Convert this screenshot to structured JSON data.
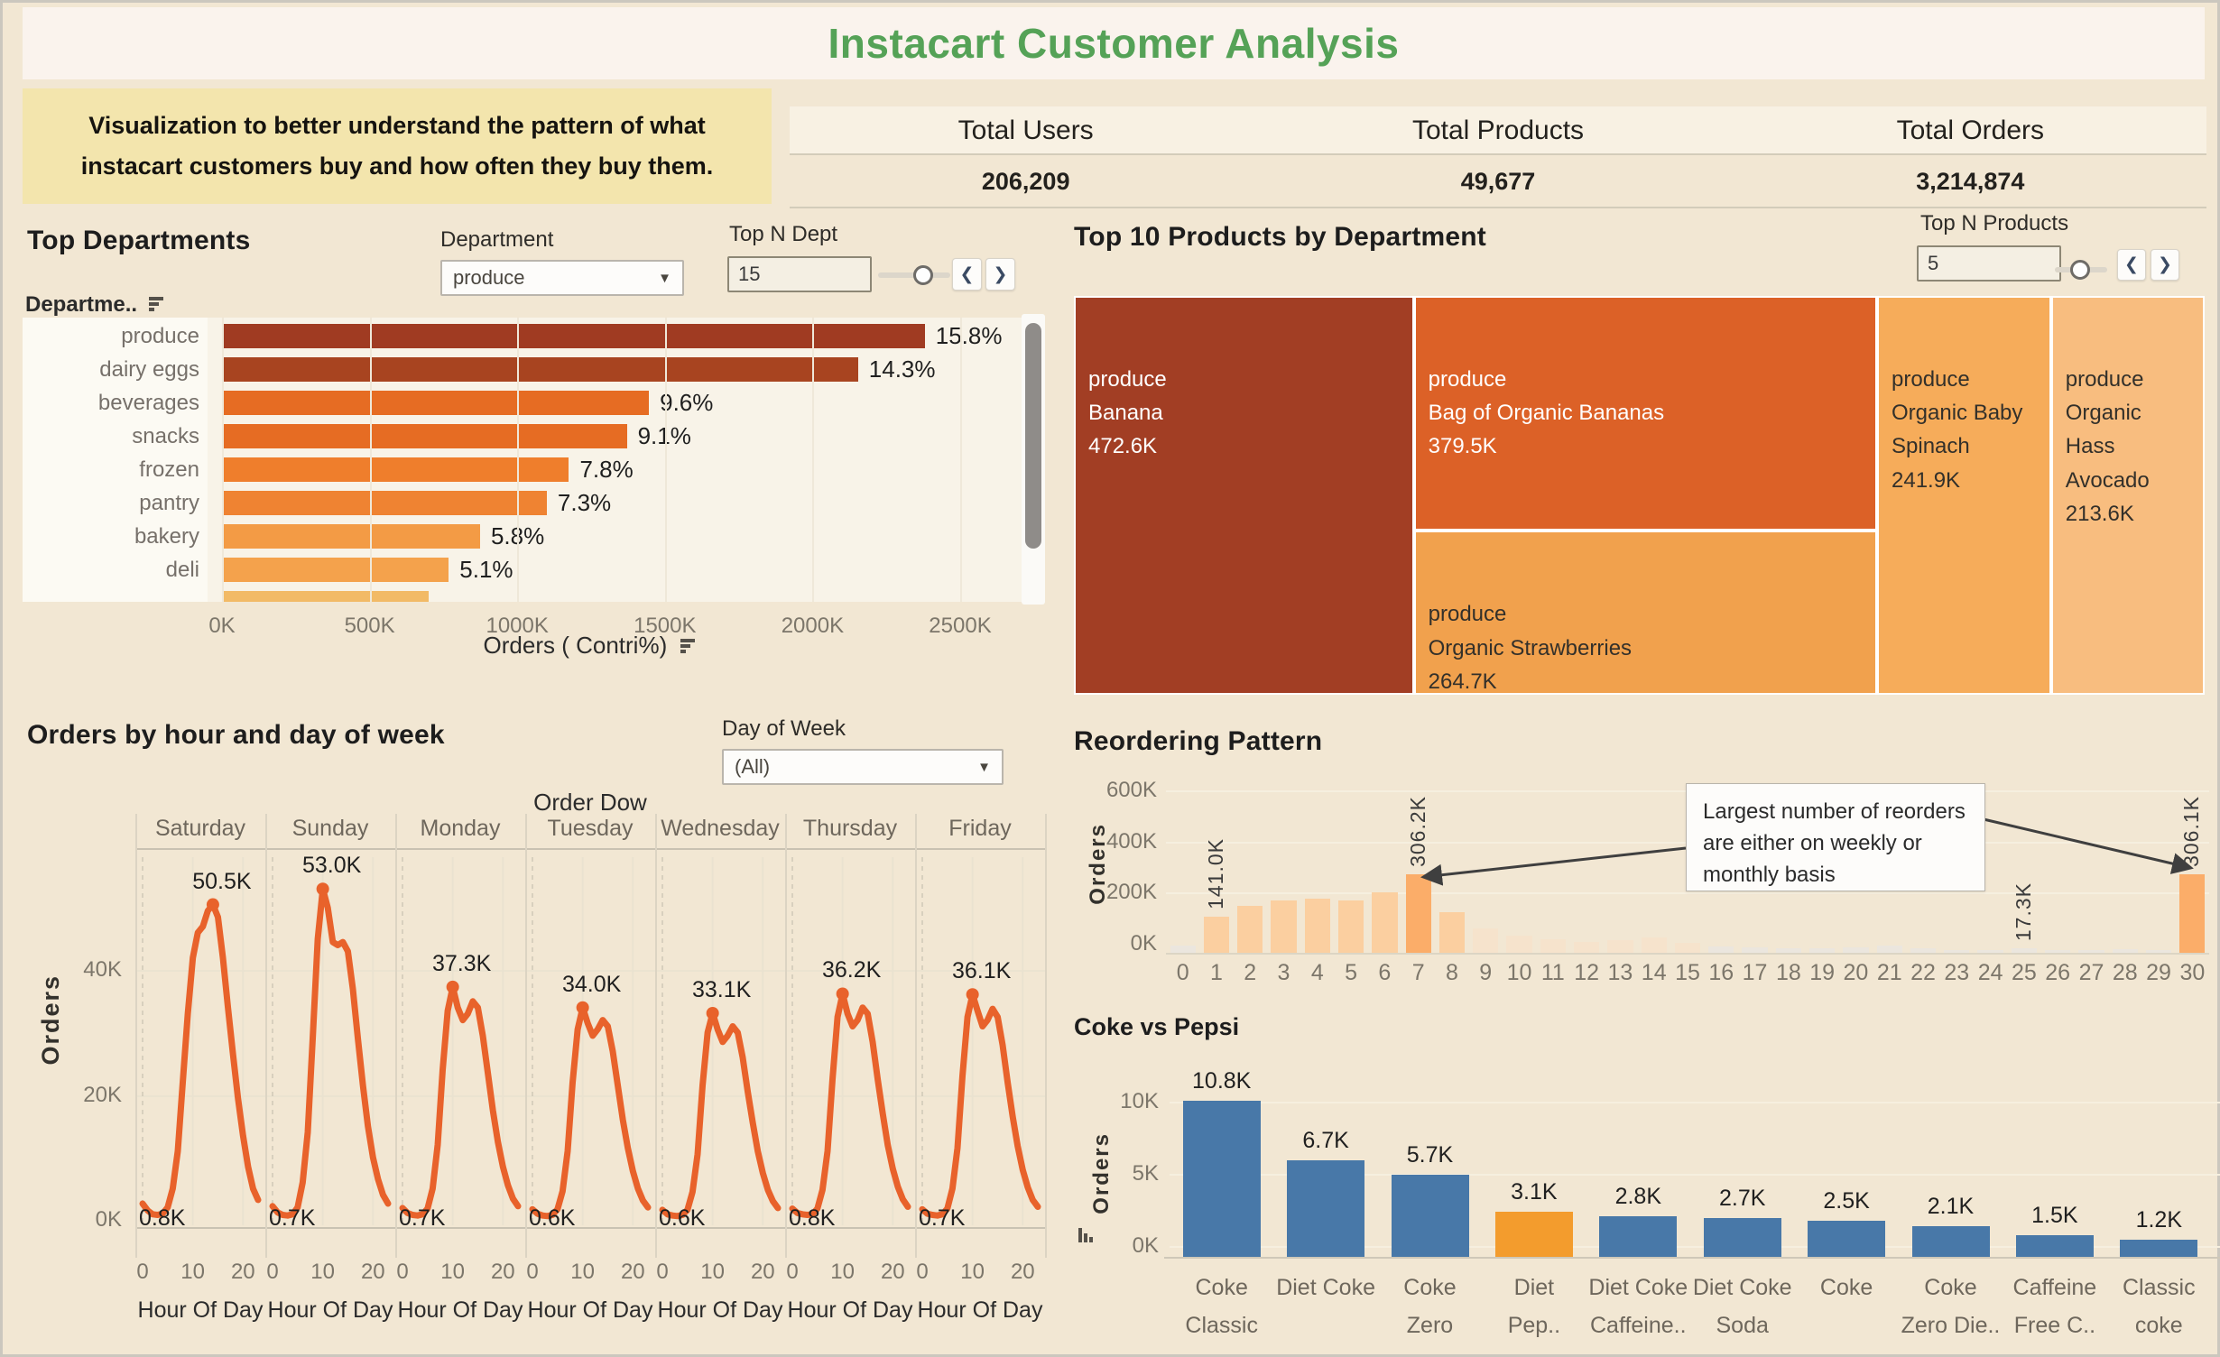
{
  "title": "Instacart Customer Analysis",
  "note": "Visualization to better understand the pattern of what instacart customers buy and how often they buy them.",
  "kpis": [
    {
      "label": "Total Users",
      "value": "206,209"
    },
    {
      "label": "Total Products",
      "value": "49,677"
    },
    {
      "label": "Total Orders",
      "value": "3,214,874"
    }
  ],
  "top_departments": {
    "title": "Top Departments",
    "filter_label": "Department",
    "filter_value": "produce",
    "topn_label": "Top N Dept",
    "topn_value": "15",
    "col_header": "Departme..",
    "axis_title": "Orders ( Contri%)",
    "categories": [
      "produce",
      "dairy eggs",
      "beverages",
      "snacks",
      "frozen",
      "pantry",
      "bakery",
      "deli"
    ],
    "values_k": [
      2380,
      2154,
      1446,
      1371,
      1175,
      1100,
      874,
      768
    ],
    "pct_labels": [
      "15.8%",
      "14.3%",
      "9.6%",
      "9.1%",
      "7.8%",
      "7.3%",
      "5.8%",
      "5.1%"
    ],
    "bar_colors": [
      "#A03B22",
      "#A84420",
      "#E66C23",
      "#E66C23",
      "#EF7E2C",
      "#EF8332",
      "#F39B45",
      "#F4A24C"
    ],
    "clipped_bar_k": 700,
    "clipped_bar_color": "#F2BA66",
    "x_ticks": [
      {
        "v": 0,
        "label": "0K"
      },
      {
        "v": 500,
        "label": "500K"
      },
      {
        "v": 1000,
        "label": "1000K"
      },
      {
        "v": 1500,
        "label": "1500K"
      },
      {
        "v": 2000,
        "label": "2000K"
      },
      {
        "v": 2500,
        "label": "2500K"
      }
    ],
    "x_max_k": 2500
  },
  "treemap": {
    "title": "Top 10 Products by Department",
    "topn_label": "Top N Products",
    "topn_value": "5",
    "blocks": [
      {
        "dept": "produce",
        "name": "Banana",
        "value_label": "472.6K",
        "v": 472.6,
        "color": "#A23E24",
        "text": "#FFFFFF"
      },
      {
        "dept": "produce",
        "name": "Bag of Organic Bananas",
        "value_label": "379.5K",
        "v": 379.5,
        "color": "#DC6127",
        "text": "#FFFFFF"
      },
      {
        "dept": "produce",
        "name": "Organic Strawberries",
        "value_label": "264.7K",
        "v": 264.7,
        "color": "#F1A14D",
        "text": "#33302a"
      },
      {
        "dept": "produce",
        "name": "Organic Baby Spinach",
        "value_label": "241.9K",
        "v": 241.9,
        "color": "#F6AC5A",
        "text": "#33302a"
      },
      {
        "dept": "produce",
        "name": "Organic Hass Avocado",
        "value_label": "213.6K",
        "v": 213.6,
        "color": "#F8BD7F",
        "text": "#33302a"
      }
    ]
  },
  "hours": {
    "title": "Orders by hour and day of week",
    "filter_label": "Day of Week",
    "filter_value": "(All)",
    "col_group": "Order Dow",
    "ylabel": "Orders",
    "y_ticks": [
      {
        "v": 40,
        "label": "40K"
      },
      {
        "v": 20,
        "label": "20K"
      },
      {
        "v": 0,
        "label": "0K"
      }
    ],
    "x_ticks": [
      {
        "v": 0,
        "label": "0"
      },
      {
        "v": 10,
        "label": "10"
      },
      {
        "v": 20,
        "label": "20"
      }
    ],
    "x_label": "Hour Of Day",
    "line_color": "#E8622B",
    "days": [
      {
        "name": "Saturday",
        "peak_label": "50.5K",
        "peak_hour": 14,
        "min_label": "0.8K",
        "values": [
          2.6,
          1.5,
          0.9,
          0.8,
          1.0,
          2.0,
          5.0,
          11.0,
          22.0,
          33.0,
          42.0,
          46.0,
          47.0,
          49.5,
          50.5,
          48.5,
          42.0,
          34.0,
          26.5,
          19.5,
          13.5,
          8.5,
          5.0,
          3.2
        ]
      },
      {
        "name": "Sunday",
        "peak_label": "53.0K",
        "peak_hour": 10,
        "min_label": "0.7K",
        "values": [
          2.2,
          1.2,
          0.8,
          0.7,
          0.9,
          2.0,
          6.0,
          14.0,
          29.0,
          45.0,
          53.0,
          50.0,
          44.5,
          44.0,
          44.5,
          43.0,
          37.0,
          29.0,
          21.5,
          15.0,
          10.0,
          6.5,
          4.0,
          2.6
        ]
      },
      {
        "name": "Monday",
        "peak_label": "37.3K",
        "peak_hour": 10,
        "min_label": "0.7K",
        "values": [
          1.9,
          1.1,
          0.8,
          0.7,
          0.9,
          1.8,
          5.0,
          12.0,
          24.0,
          33.5,
          37.3,
          34.0,
          32.0,
          33.0,
          35.0,
          34.0,
          29.5,
          23.5,
          17.5,
          12.5,
          8.5,
          5.5,
          3.4,
          2.2
        ]
      },
      {
        "name": "Tuesday",
        "peak_label": "34.0K",
        "peak_hour": 10,
        "min_label": "0.6K",
        "values": [
          1.7,
          1.0,
          0.7,
          0.6,
          0.8,
          1.7,
          4.6,
          11.0,
          22.0,
          30.5,
          34.0,
          31.5,
          29.5,
          30.5,
          32.0,
          31.0,
          27.0,
          21.5,
          16.0,
          11.5,
          7.8,
          5.0,
          3.1,
          2.0
        ]
      },
      {
        "name": "Wednesday",
        "peak_label": "33.1K",
        "peak_hour": 10,
        "min_label": "0.6K",
        "values": [
          1.6,
          0.9,
          0.7,
          0.6,
          0.8,
          1.6,
          4.5,
          10.5,
          21.5,
          30.0,
          33.1,
          30.5,
          28.5,
          29.5,
          31.0,
          30.0,
          26.0,
          20.5,
          15.5,
          11.0,
          7.5,
          4.8,
          3.0,
          1.9
        ]
      },
      {
        "name": "Thursday",
        "peak_label": "36.2K",
        "peak_hour": 10,
        "min_label": "0.8K",
        "values": [
          1.8,
          1.1,
          0.9,
          0.8,
          0.9,
          1.8,
          4.8,
          11.0,
          22.5,
          32.5,
          36.2,
          33.0,
          31.0,
          32.0,
          34.0,
          33.0,
          28.5,
          22.5,
          17.0,
          12.0,
          8.2,
          5.3,
          3.3,
          2.1
        ]
      },
      {
        "name": "Friday",
        "peak_label": "36.1K",
        "peak_hour": 10,
        "min_label": "0.7K",
        "values": [
          1.7,
          1.0,
          0.8,
          0.7,
          0.9,
          1.8,
          5.0,
          11.5,
          23.0,
          32.5,
          36.1,
          33.5,
          31.0,
          32.0,
          33.8,
          32.5,
          28.0,
          22.0,
          16.5,
          11.8,
          8.0,
          5.2,
          3.2,
          2.1
        ]
      }
    ]
  },
  "reorder": {
    "title": "Reordering Pattern",
    "ylabel": "Orders",
    "annotation": "Largest number of reorders are either on weekly or monthly basis",
    "y_ticks": [
      {
        "v": 600,
        "label": "600K"
      },
      {
        "v": 400,
        "label": "400K"
      },
      {
        "v": 200,
        "label": "200K"
      },
      {
        "v": 0,
        "label": "0K"
      }
    ],
    "ymax_k": 600,
    "colors": {
      "strong": "#FBAD69",
      "peach": "#FBCFA0",
      "pale": "#F6E3CC",
      "gray": "#EBE6DE"
    },
    "bars": [
      {
        "x": "0",
        "v": 30,
        "c": "gray"
      },
      {
        "x": "1",
        "v": 141,
        "c": "peach",
        "label": "141.0K"
      },
      {
        "x": "2",
        "v": 185,
        "c": "peach"
      },
      {
        "x": "3",
        "v": 205,
        "c": "peach"
      },
      {
        "x": "4",
        "v": 212,
        "c": "peach"
      },
      {
        "x": "5",
        "v": 205,
        "c": "peach"
      },
      {
        "x": "6",
        "v": 235,
        "c": "peach"
      },
      {
        "x": "7",
        "v": 306.2,
        "c": "strong",
        "label": "306.2K"
      },
      {
        "x": "8",
        "v": 160,
        "c": "peach"
      },
      {
        "x": "9",
        "v": 95,
        "c": "pale"
      },
      {
        "x": "10",
        "v": 68,
        "c": "pale"
      },
      {
        "x": "11",
        "v": 52,
        "c": "pale"
      },
      {
        "x": "12",
        "v": 44,
        "c": "pale"
      },
      {
        "x": "13",
        "v": 50,
        "c": "pale"
      },
      {
        "x": "14",
        "v": 60,
        "c": "pale"
      },
      {
        "x": "15",
        "v": 38,
        "c": "pale"
      },
      {
        "x": "16",
        "v": 26,
        "c": "gray"
      },
      {
        "x": "17",
        "v": 22,
        "c": "gray"
      },
      {
        "x": "18",
        "v": 17,
        "c": "gray"
      },
      {
        "x": "19",
        "v": 17,
        "c": "gray"
      },
      {
        "x": "20",
        "v": 22,
        "c": "gray"
      },
      {
        "x": "21",
        "v": 28,
        "c": "gray"
      },
      {
        "x": "22",
        "v": 17,
        "c": "gray"
      },
      {
        "x": "23",
        "v": 10,
        "c": "gray"
      },
      {
        "x": "24",
        "v": 10,
        "c": "gray"
      },
      {
        "x": "25",
        "v": 17.3,
        "c": "gray",
        "label": "17.3K"
      },
      {
        "x": "26",
        "v": 8,
        "c": "gray"
      },
      {
        "x": "27",
        "v": 9,
        "c": "gray"
      },
      {
        "x": "28",
        "v": 15,
        "c": "gray"
      },
      {
        "x": "29",
        "v": 10,
        "c": "gray"
      },
      {
        "x": "30",
        "v": 306.1,
        "c": "strong",
        "label": "306.1K"
      }
    ]
  },
  "coke": {
    "title": "Coke vs Pepsi",
    "ylabel": "Orders",
    "y_ticks": [
      {
        "v": 10,
        "label": "10K"
      },
      {
        "v": 5,
        "label": "5K"
      },
      {
        "v": 0,
        "label": "0K"
      }
    ],
    "colors": {
      "blue": "#4878A8",
      "orange": "#F39C2D"
    },
    "bars": [
      {
        "lines": [
          "Coke",
          "Classic"
        ],
        "value": "10.8K",
        "v": 10.8,
        "highlight": false
      },
      {
        "lines": [
          "Diet Coke",
          ""
        ],
        "value": "6.7K",
        "v": 6.7,
        "highlight": false
      },
      {
        "lines": [
          "Coke",
          "Zero"
        ],
        "value": "5.7K",
        "v": 5.7,
        "highlight": false
      },
      {
        "lines": [
          "Diet",
          "Pep.."
        ],
        "value": "3.1K",
        "v": 3.1,
        "highlight": true
      },
      {
        "lines": [
          "Diet Coke",
          "Caffeine.."
        ],
        "value": "2.8K",
        "v": 2.8,
        "highlight": false
      },
      {
        "lines": [
          "Diet Coke",
          "Soda"
        ],
        "value": "2.7K",
        "v": 2.7,
        "highlight": false
      },
      {
        "lines": [
          "Coke",
          ""
        ],
        "value": "2.5K",
        "v": 2.5,
        "highlight": false
      },
      {
        "lines": [
          "Coke",
          "Zero Die.."
        ],
        "value": "2.1K",
        "v": 2.1,
        "highlight": false
      },
      {
        "lines": [
          "Caffeine",
          "Free C.."
        ],
        "value": "1.5K",
        "v": 1.5,
        "highlight": false
      },
      {
        "lines": [
          "Classic",
          "coke"
        ],
        "value": "1.2K",
        "v": 1.2,
        "highlight": false
      }
    ]
  },
  "chart_data": [
    {
      "type": "bar",
      "title": "Top Departments",
      "xlabel": "Orders ( Contri%)",
      "categories": [
        "produce",
        "dairy eggs",
        "beverages",
        "snacks",
        "frozen",
        "pantry",
        "bakery",
        "deli"
      ],
      "values_k": [
        2380,
        2154,
        1446,
        1371,
        1175,
        1100,
        874,
        768
      ],
      "labels": [
        "15.8%",
        "14.3%",
        "9.6%",
        "9.1%",
        "7.8%",
        "7.3%",
        "5.8%",
        "5.1%"
      ],
      "xlim_k": [
        0,
        2500
      ]
    },
    {
      "type": "heatmap",
      "title": "Top 10 Products by Department (treemap)",
      "categories": [
        "Banana",
        "Bag of Organic Bananas",
        "Organic Strawberries",
        "Organic Baby Spinach",
        "Organic Hass Avocado"
      ],
      "values_k": [
        472.6,
        379.5,
        264.7,
        241.9,
        213.6
      ]
    },
    {
      "type": "line",
      "title": "Orders by hour and day of week",
      "ylabel": "Orders",
      "ylim_k": [
        0,
        55
      ],
      "series_peaks_k": {
        "Saturday": 50.5,
        "Sunday": 53.0,
        "Monday": 37.3,
        "Tuesday": 34.0,
        "Wednesday": 33.1,
        "Thursday": 36.2,
        "Friday": 36.1
      },
      "series_mins_k": {
        "Saturday": 0.8,
        "Sunday": 0.7,
        "Monday": 0.7,
        "Tuesday": 0.6,
        "Wednesday": 0.6,
        "Thursday": 0.8,
        "Friday": 0.7
      }
    },
    {
      "type": "bar",
      "title": "Reordering Pattern",
      "ylabel": "Orders",
      "ylim_k": [
        0,
        600
      ],
      "x": [
        0,
        1,
        2,
        3,
        4,
        5,
        6,
        7,
        8,
        9,
        10,
        11,
        12,
        13,
        14,
        15,
        16,
        17,
        18,
        19,
        20,
        21,
        22,
        23,
        24,
        25,
        26,
        27,
        28,
        29,
        30
      ],
      "values_k": [
        30,
        141,
        185,
        205,
        212,
        205,
        235,
        306.2,
        160,
        95,
        68,
        52,
        44,
        50,
        60,
        38,
        26,
        22,
        17,
        17,
        22,
        28,
        17,
        10,
        10,
        17.3,
        8,
        9,
        15,
        10,
        306.1
      ]
    },
    {
      "type": "bar",
      "title": "Coke vs Pepsi",
      "ylabel": "Orders",
      "ylim_k": [
        0,
        12
      ],
      "categories": [
        "Coke Classic",
        "Diet Coke",
        "Coke Zero",
        "Diet Pep..",
        "Diet Coke Caffeine..",
        "Diet Coke Soda",
        "Coke",
        "Coke Zero Die..",
        "Caffeine Free C..",
        "Classic coke"
      ],
      "values_k": [
        10.8,
        6.7,
        5.7,
        3.1,
        2.8,
        2.7,
        2.5,
        2.1,
        1.5,
        1.2
      ]
    }
  ]
}
